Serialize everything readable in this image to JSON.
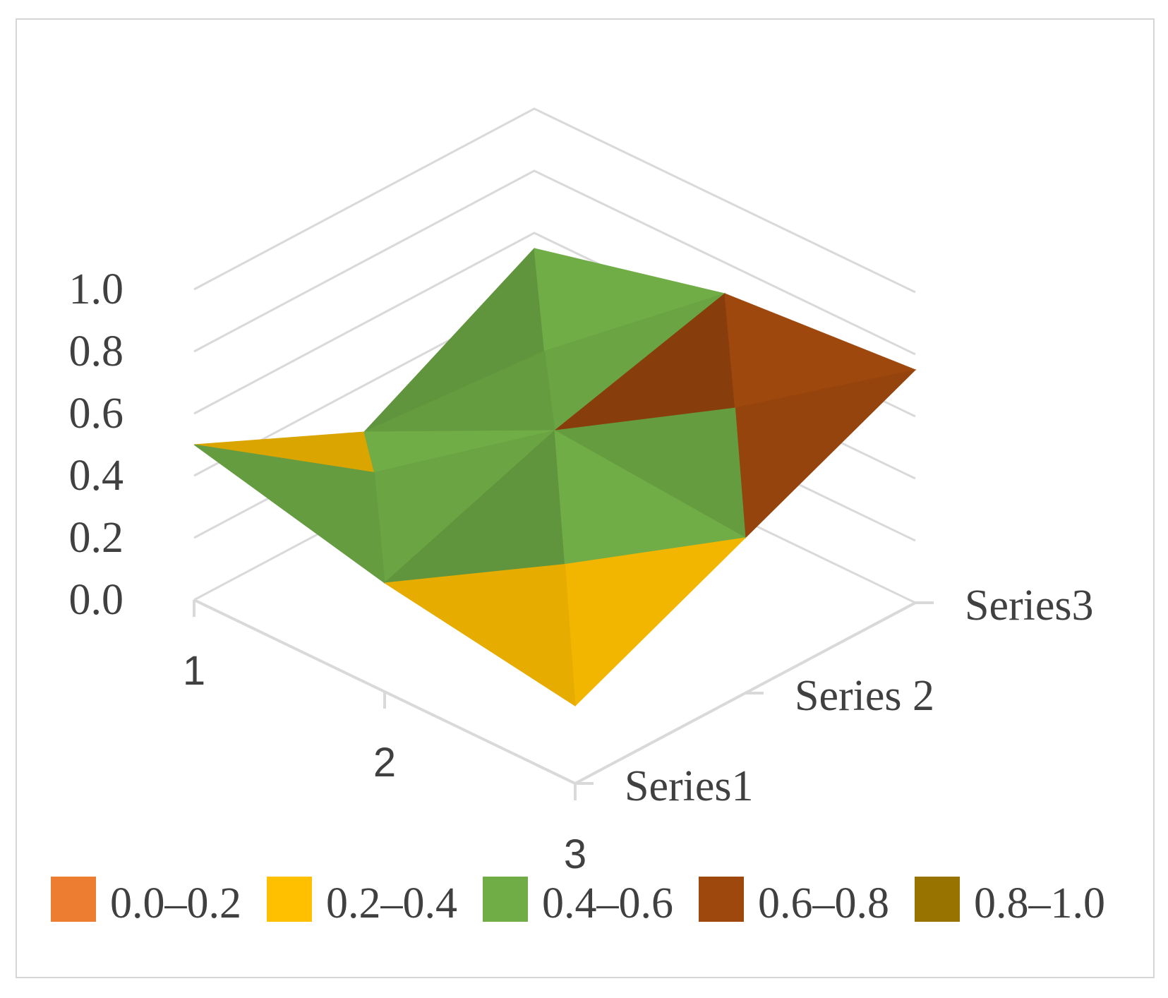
{
  "chart_data": {
    "type": "surface",
    "title": "",
    "z_ticks": [
      "0.0",
      "0.2",
      "0.4",
      "0.6",
      "0.8",
      "1.0"
    ],
    "zlim": [
      0,
      1
    ],
    "categories": [
      "1",
      "2",
      "3"
    ],
    "series": [
      {
        "name": "Series1",
        "values": [
          0.5,
          0.35,
          0.25
        ]
      },
      {
        "name": "Series 2",
        "values": [
          0.25,
          0.55,
          0.5
        ]
      },
      {
        "name": "Series3",
        "values": [
          0.55,
          0.7,
          0.75
        ]
      }
    ],
    "legend": [
      {
        "label": "0.0–0.2",
        "color": "#ED7D31"
      },
      {
        "label": "0.2–0.4",
        "color": "#FFC000"
      },
      {
        "label": "0.4–0.6",
        "color": "#70AD47"
      },
      {
        "label": "0.6–0.8",
        "color": "#9E480E"
      },
      {
        "label": "0.8–1.0",
        "color": "#997300"
      }
    ],
    "legend_position": "bottom",
    "grid": true
  }
}
